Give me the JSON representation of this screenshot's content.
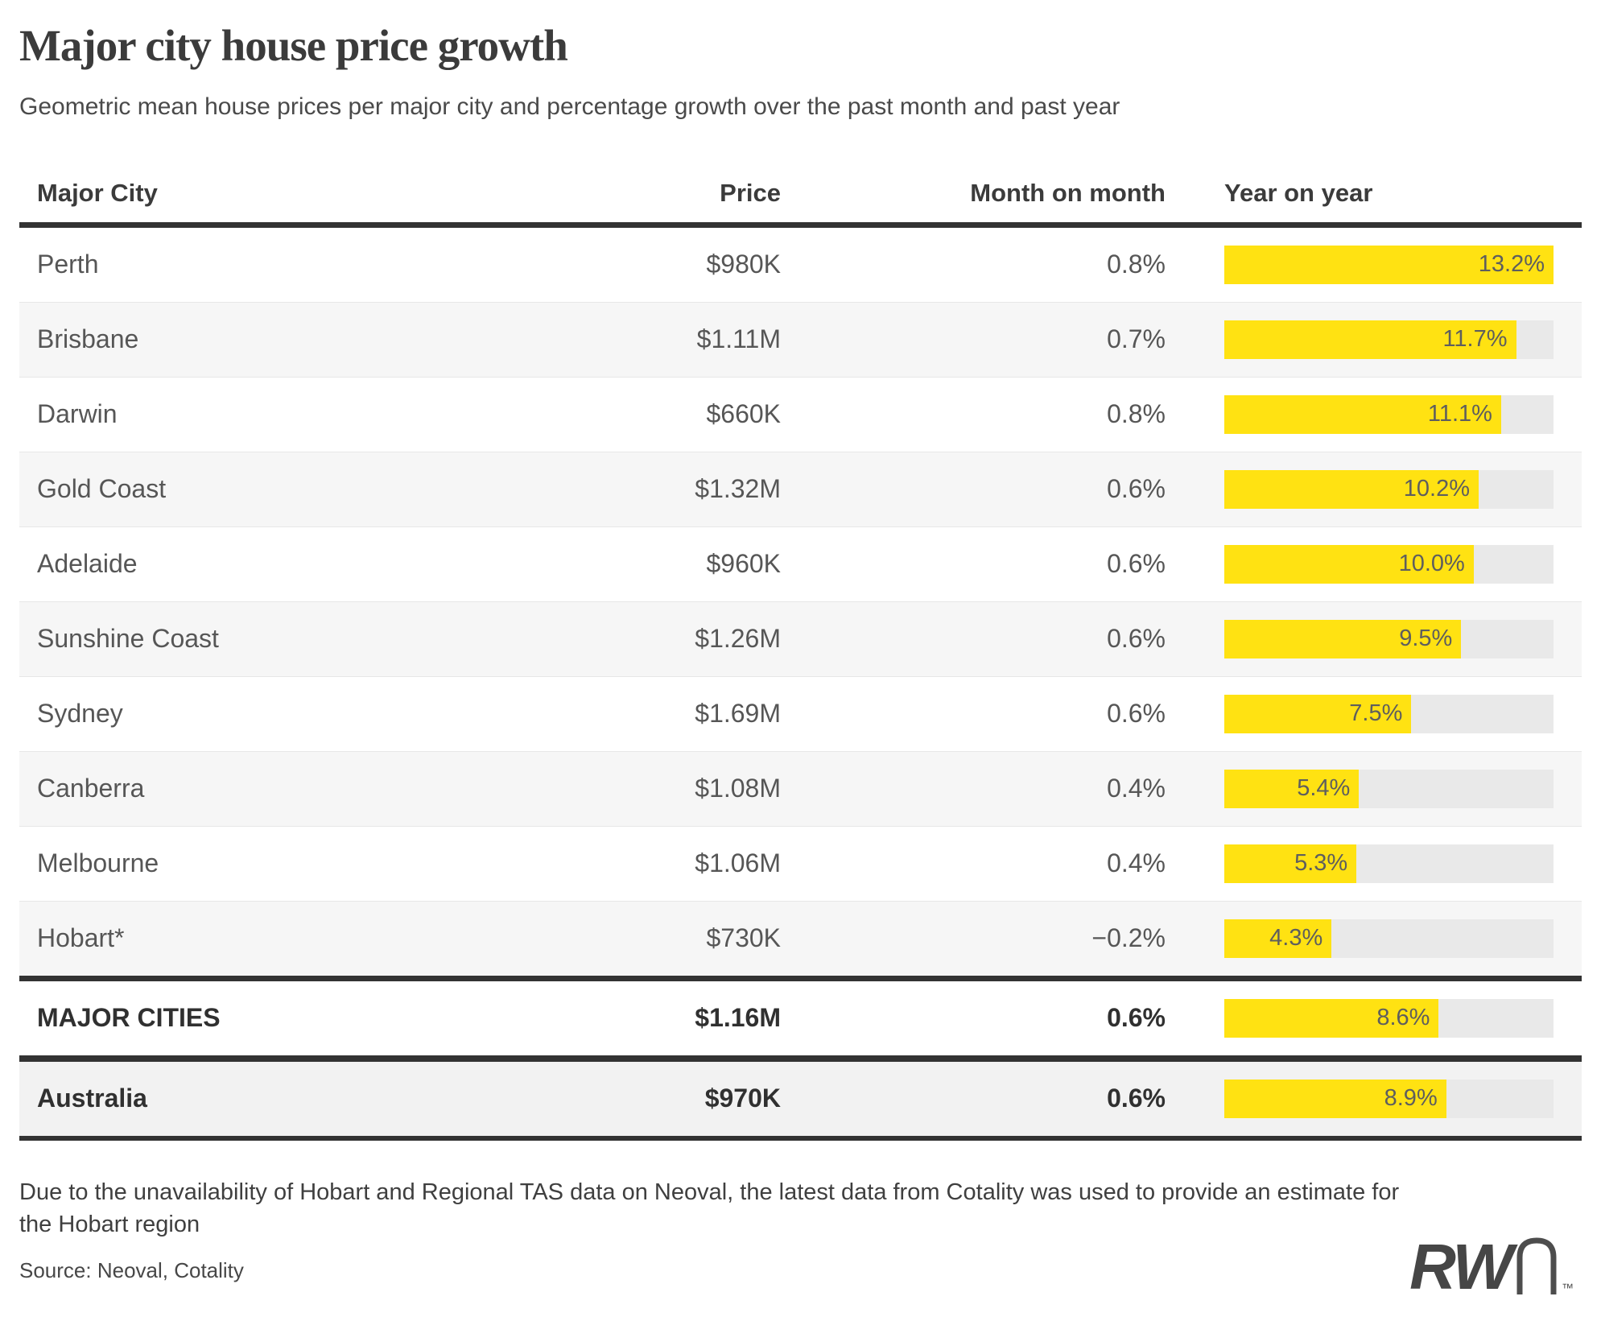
{
  "header": {
    "title": "Major city house price growth",
    "subtitle": "Geometric mean house prices per major city and percentage growth over the past month and past year"
  },
  "table": {
    "columns": [
      "Major City",
      "Price",
      "Month on month",
      "Year on year"
    ],
    "yoy_max": 13.2,
    "rows": [
      {
        "city": "Perth",
        "price": "$980K",
        "mom": "0.8%",
        "yoy": 13.2,
        "yoy_label": "13.2%"
      },
      {
        "city": "Brisbane",
        "price": "$1.11M",
        "mom": "0.7%",
        "yoy": 11.7,
        "yoy_label": "11.7%"
      },
      {
        "city": "Darwin",
        "price": "$660K",
        "mom": "0.8%",
        "yoy": 11.1,
        "yoy_label": "11.1%"
      },
      {
        "city": "Gold Coast",
        "price": "$1.32M",
        "mom": "0.6%",
        "yoy": 10.2,
        "yoy_label": "10.2%"
      },
      {
        "city": "Adelaide",
        "price": "$960K",
        "mom": "0.6%",
        "yoy": 10.0,
        "yoy_label": "10.0%"
      },
      {
        "city": "Sunshine Coast",
        "price": "$1.26M",
        "mom": "0.6%",
        "yoy": 9.5,
        "yoy_label": "9.5%"
      },
      {
        "city": "Sydney",
        "price": "$1.69M",
        "mom": "0.6%",
        "yoy": 7.5,
        "yoy_label": "7.5%"
      },
      {
        "city": "Canberra",
        "price": "$1.08M",
        "mom": "0.4%",
        "yoy": 5.4,
        "yoy_label": "5.4%"
      },
      {
        "city": "Melbourne",
        "price": "$1.06M",
        "mom": "0.4%",
        "yoy": 5.3,
        "yoy_label": "5.3%"
      },
      {
        "city": "Hobart*",
        "price": "$730K",
        "mom": "−0.2%",
        "yoy": 4.3,
        "yoy_label": "4.3%"
      }
    ],
    "totals": [
      {
        "city": "MAJOR CITIES",
        "price": "$1.16M",
        "mom": "0.6%",
        "yoy": 8.6,
        "yoy_label": "8.6%"
      },
      {
        "city": "Australia",
        "price": "$970K",
        "mom": "0.6%",
        "yoy": 8.9,
        "yoy_label": "8.9%"
      }
    ]
  },
  "chart_data": {
    "type": "bar",
    "orientation": "horizontal",
    "title": "Major city house price growth",
    "subtitle": "Geometric mean house prices per major city and percentage growth over the past month and past year",
    "categories": [
      "Perth",
      "Brisbane",
      "Darwin",
      "Gold Coast",
      "Adelaide",
      "Sunshine Coast",
      "Sydney",
      "Canberra",
      "Melbourne",
      "Hobart*",
      "MAJOR CITIES",
      "Australia"
    ],
    "series": [
      {
        "name": "Price",
        "values": [
          "$980K",
          "$1.11M",
          "$660K",
          "$1.32M",
          "$960K",
          "$1.26M",
          "$1.69M",
          "$1.08M",
          "$1.06M",
          "$730K",
          "$1.16M",
          "$970K"
        ]
      },
      {
        "name": "Month on month (%)",
        "values": [
          0.8,
          0.7,
          0.8,
          0.6,
          0.6,
          0.6,
          0.6,
          0.4,
          0.4,
          -0.2,
          0.6,
          0.6
        ]
      },
      {
        "name": "Year on year (%)",
        "values": [
          13.2,
          11.7,
          11.1,
          10.2,
          10.0,
          9.5,
          7.5,
          5.4,
          5.3,
          4.3,
          8.6,
          8.9
        ]
      }
    ],
    "xlim": [
      0,
      13.2
    ],
    "bar_color": "#ffe212",
    "track_color": "#e9e9e9",
    "grid": false,
    "legend_position": "none"
  },
  "footer": {
    "note": "Due to the unavailability of Hobart and Regional TAS data on Neoval, the latest data from Cotality was used to provide an estimate for the Hobart region",
    "source": "Source: Neoval, Cotality",
    "logo": {
      "bold": "RW",
      "light_letter": "n",
      "tm": "™"
    }
  },
  "colors": {
    "bar_fill": "#ffe212",
    "bar_track": "#e9e9e9",
    "stripe": "#f6f6f6",
    "rule": "#333333"
  }
}
